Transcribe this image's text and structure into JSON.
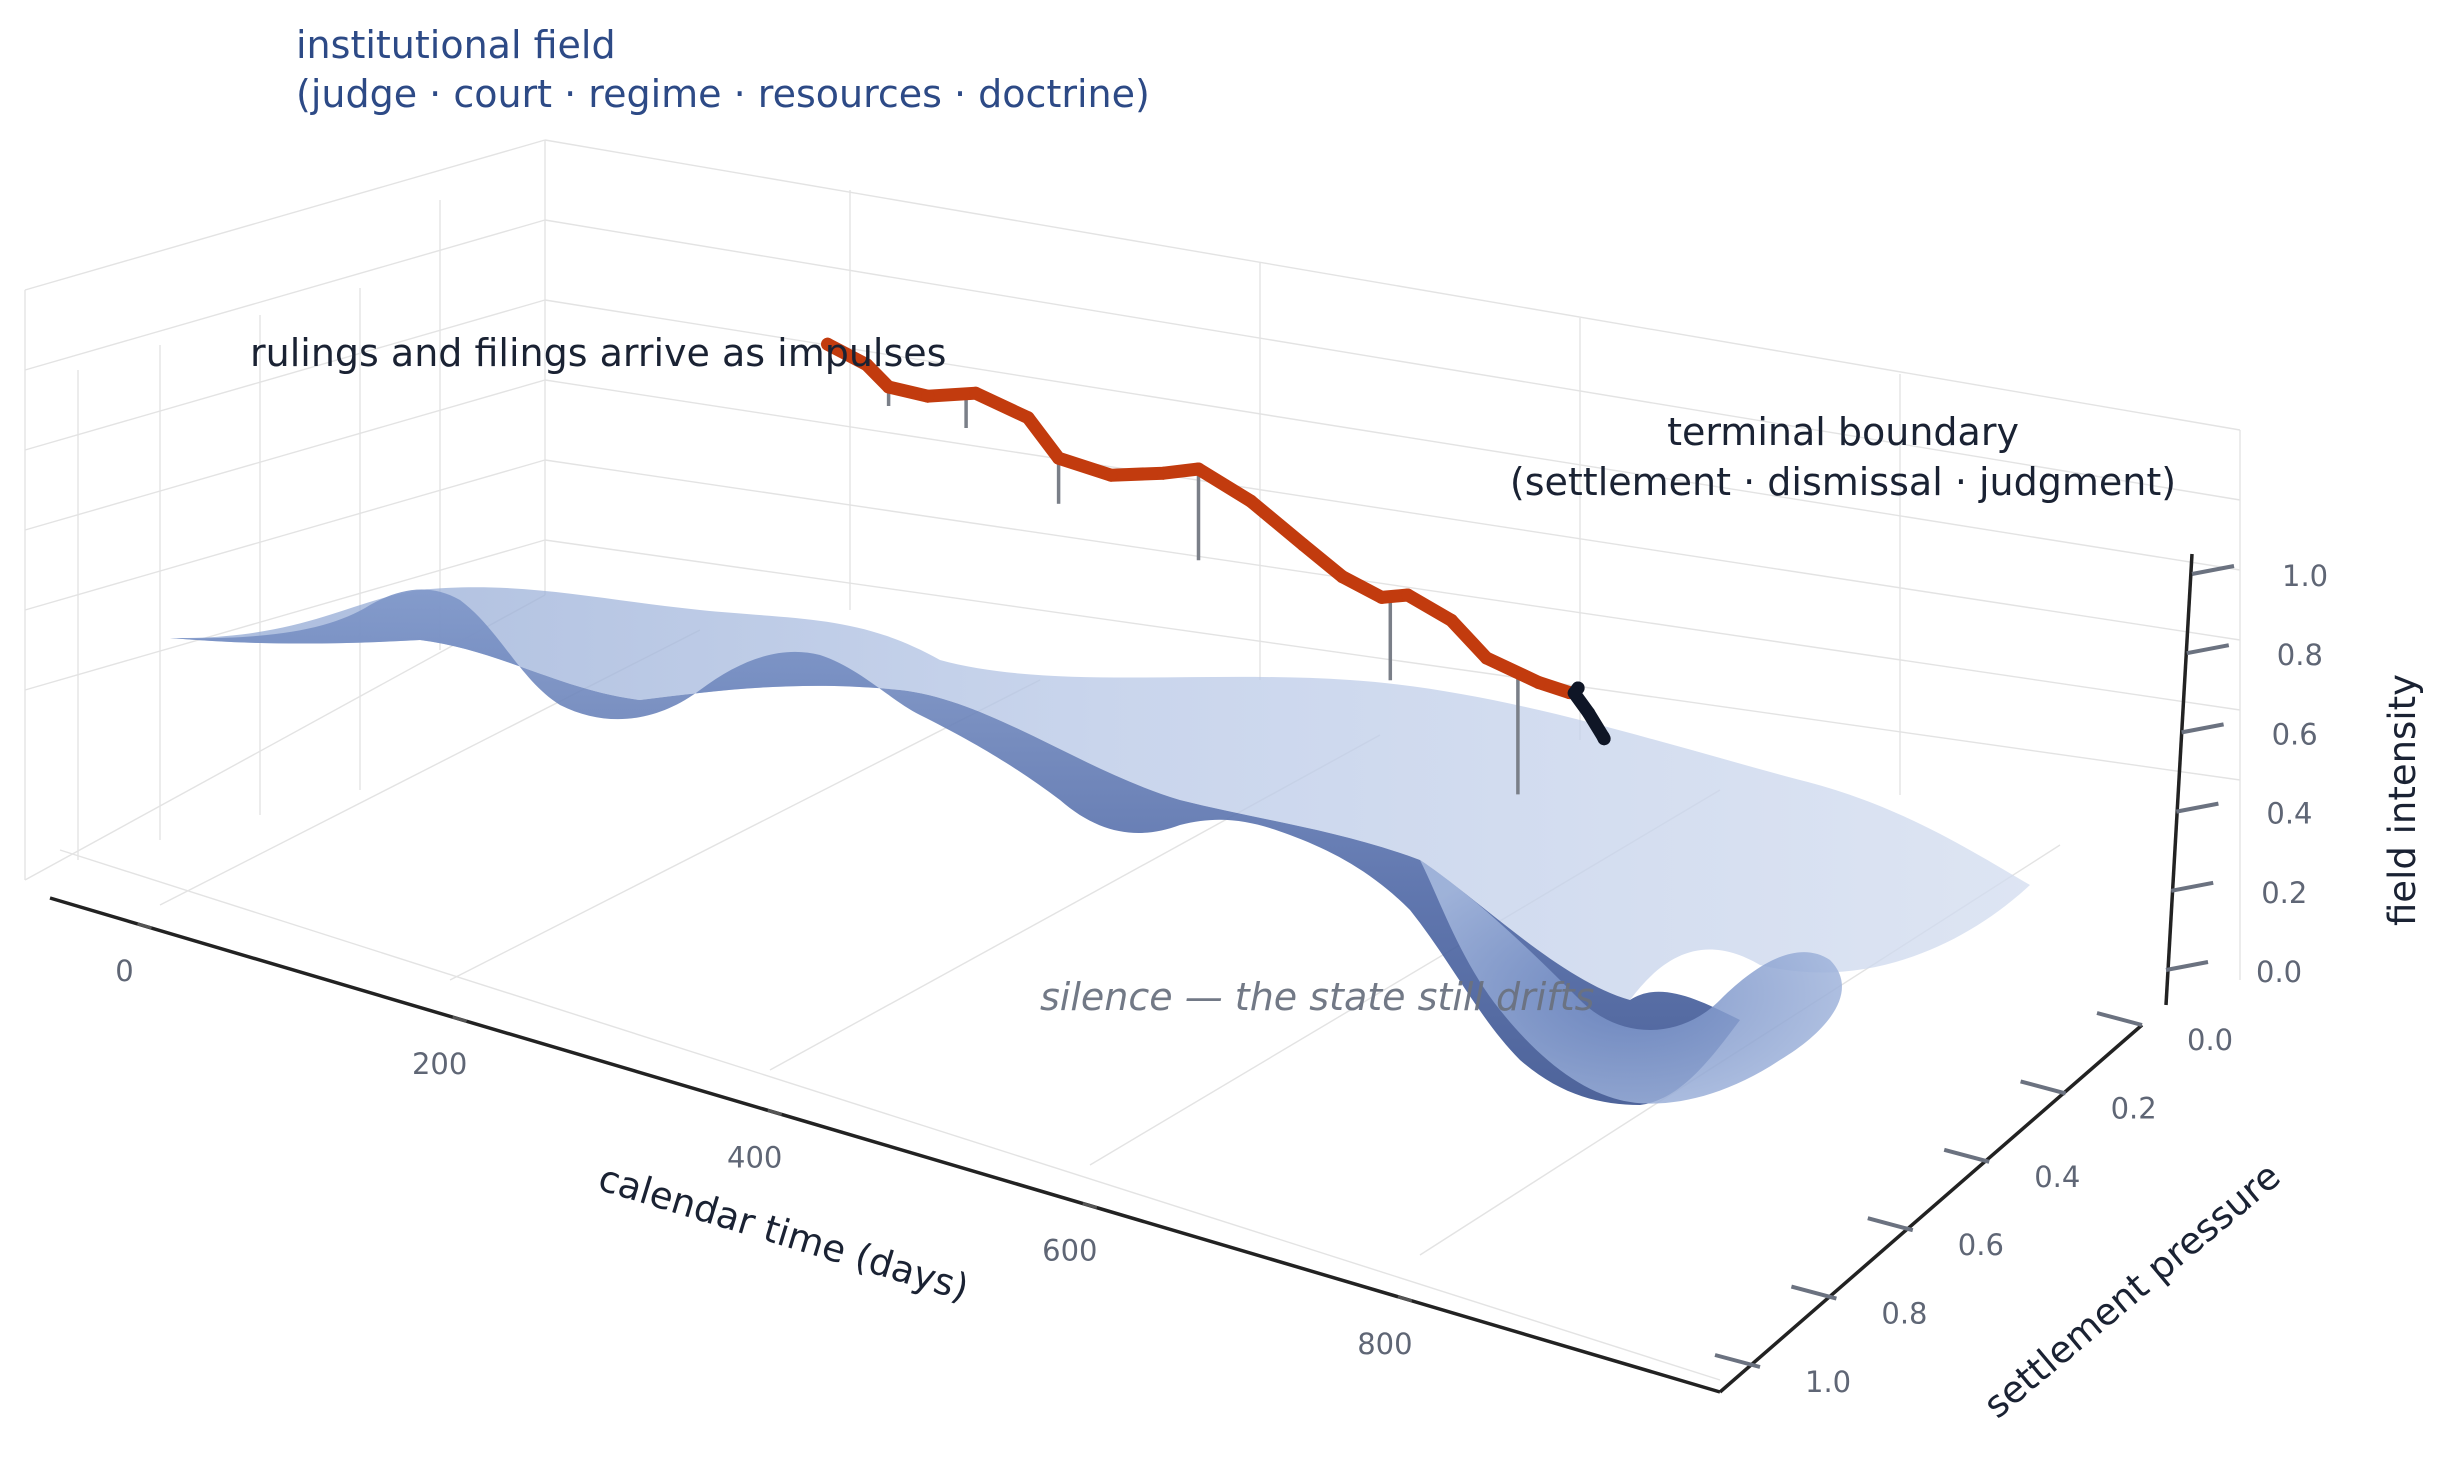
{
  "chart_data": {
    "type": "surface",
    "title_lines": [
      "institutional field",
      "(judge · court · regime · resources · doctrine)"
    ],
    "annotations": {
      "impulses": "rulings and filings arrive as impulses",
      "boundary_lines": [
        "terminal boundary",
        "(settlement · dismissal · judgment)"
      ],
      "silence": "silence — the state still drifts"
    },
    "x_axis": {
      "label": "calendar time (days)",
      "ticks": [
        0,
        200,
        400,
        600,
        800
      ],
      "range": [
        -60,
        1000
      ]
    },
    "y_axis": {
      "label": "settlement pressure",
      "ticks": [
        "0.0",
        "0.2",
        "0.4",
        "0.6",
        "0.8",
        "1.0"
      ],
      "range": [
        0,
        1
      ]
    },
    "z_axis": {
      "label": "field intensity",
      "ticks": [
        "0.0",
        "0.2",
        "0.4",
        "0.6",
        "0.8",
        "1.0"
      ],
      "range": [
        0,
        1
      ]
    },
    "trajectory": {
      "color": "#c23b0e",
      "points": [
        [
          240,
          0.05,
          0.86
        ],
        [
          280,
          0.06,
          0.83
        ],
        [
          300,
          0.07,
          0.78
        ],
        [
          340,
          0.08,
          0.78
        ],
        [
          390,
          0.09,
          0.82
        ],
        [
          440,
          0.11,
          0.78
        ],
        [
          470,
          0.12,
          0.69
        ],
        [
          520,
          0.14,
          0.67
        ],
        [
          570,
          0.16,
          0.7
        ],
        [
          600,
          0.18,
          0.72
        ],
        [
          650,
          0.2,
          0.66
        ],
        [
          700,
          0.22,
          0.57
        ],
        [
          740,
          0.23,
          0.51
        ],
        [
          780,
          0.24,
          0.48
        ],
        [
          810,
          0.24,
          0.51
        ],
        [
          850,
          0.26,
          0.46
        ],
        [
          880,
          0.28,
          0.37
        ],
        [
          930,
          0.3,
          0.33
        ],
        [
          960,
          0.31,
          0.32
        ]
      ]
    },
    "terminal_path": {
      "color": "#0f1626",
      "points": [
        [
          970,
          0.31,
          0.34
        ],
        [
          955,
          0.33,
          0.3
        ],
        [
          935,
          0.4,
          0.18
        ],
        [
          915,
          0.47,
          0.05
        ],
        [
          895,
          0.51,
          0.0
        ]
      ]
    },
    "impulses": [
      {
        "t": 300,
        "height": 0.05
      },
      {
        "t": 380,
        "height": 0.09
      },
      {
        "t": 470,
        "height": 0.12
      },
      {
        "t": 600,
        "height": 0.24
      },
      {
        "t": 790,
        "height": 0.22
      },
      {
        "t": 910,
        "height": 0.32
      }
    ],
    "colors": {
      "surface_light": "#dde6f4",
      "surface_dark": "#34508f",
      "title": "#2d4a86",
      "text": "#1a2233",
      "muted": "#6b7280"
    }
  }
}
